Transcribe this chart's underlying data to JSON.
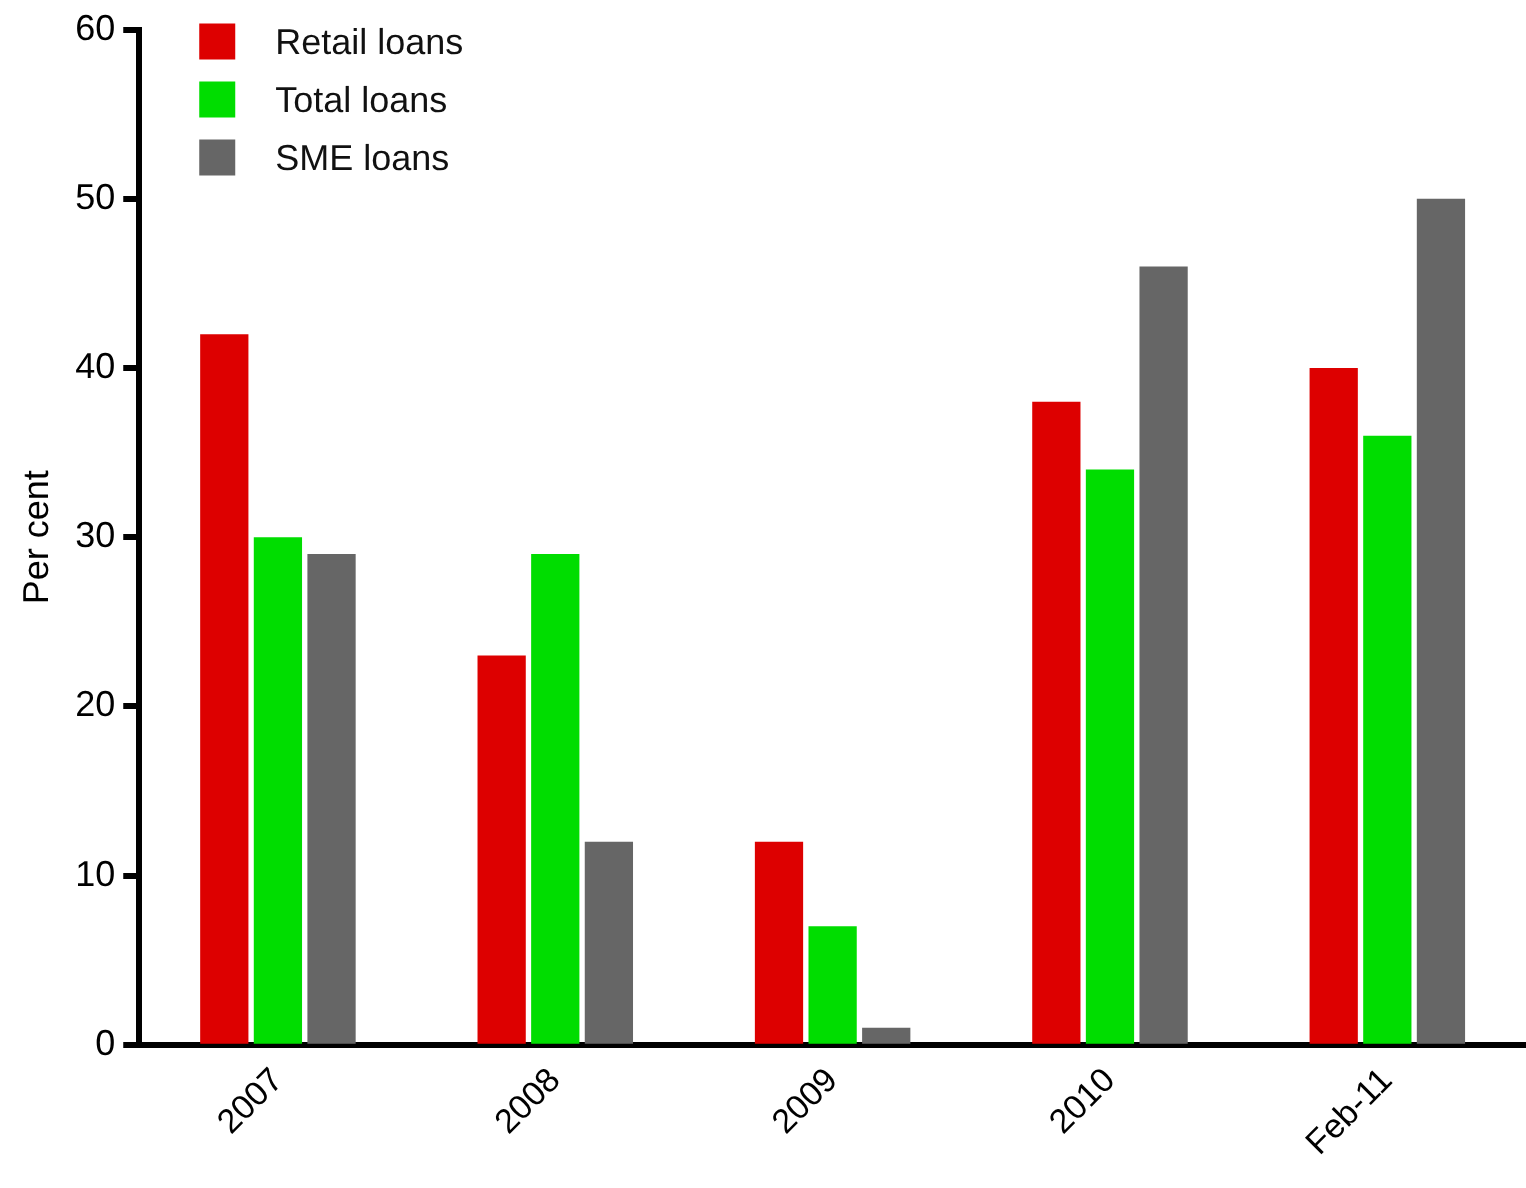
{
  "chart_data": {
    "type": "bar",
    "ylabel": "Per cent",
    "categories": [
      "2007",
      "2008",
      "2009",
      "2010",
      "Feb-11"
    ],
    "series": [
      {
        "name": "Retail loans",
        "color": "#dd0000",
        "values": [
          42,
          23,
          12,
          38,
          40
        ]
      },
      {
        "name": "Total loans",
        "color": "#00dd00",
        "values": [
          30,
          29,
          7,
          34,
          36
        ]
      },
      {
        "name": "SME loans",
        "color": "#666666",
        "values": [
          29,
          12,
          1,
          46,
          50
        ]
      }
    ],
    "ylim": [
      0,
      60
    ],
    "yticks": [
      0,
      10,
      20,
      30,
      40,
      50,
      60
    ],
    "grid": false,
    "legend": "top left"
  }
}
